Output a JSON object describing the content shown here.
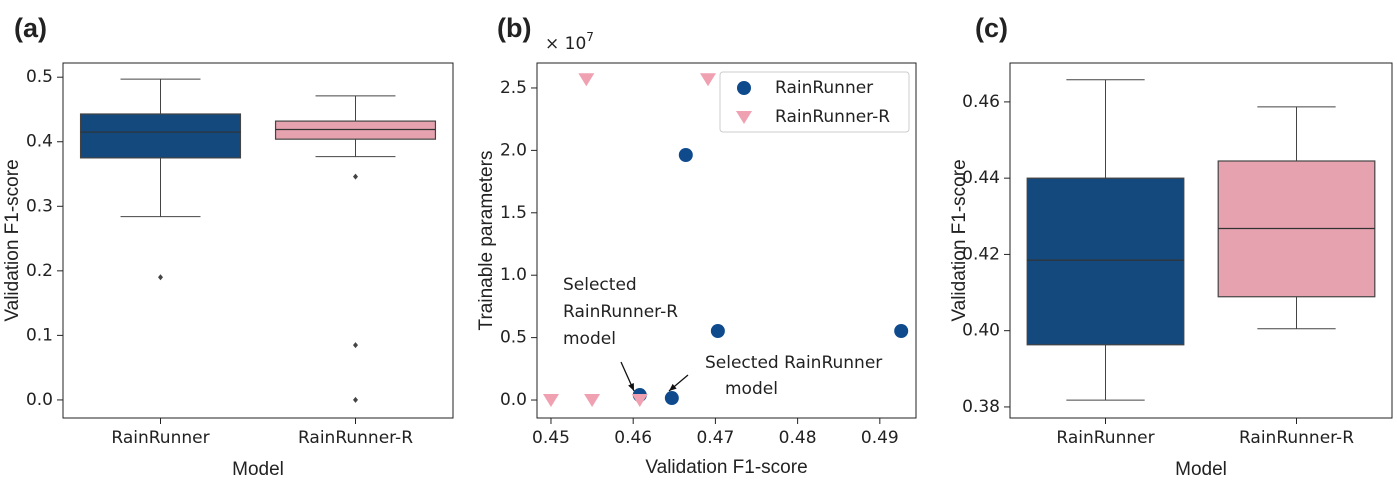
{
  "chart_data": [
    {
      "type": "box",
      "panel_label": "(a)",
      "xlabel": "Model",
      "ylabel": "Validation F1-score",
      "categories": [
        "RainRunner",
        "RainRunner-R"
      ],
      "colors": [
        "#13497c",
        "#e6a3af"
      ],
      "boxes": [
        {
          "whislo": 0.284,
          "q1": 0.375,
          "med": 0.415,
          "q3": 0.443,
          "whishi": 0.497,
          "fliers": [
            0.19
          ]
        },
        {
          "whislo": 0.377,
          "q1": 0.404,
          "med": 0.419,
          "q3": 0.432,
          "whishi": 0.471,
          "fliers": [
            0.346,
            0.085,
            0.0
          ]
        }
      ],
      "ylim": [
        -0.028,
        0.522
      ],
      "yticks": [
        {
          "value": 0,
          "label": "0.0"
        },
        0.1,
        0.2,
        0.3,
        0.4,
        0.5
      ]
    },
    {
      "type": "scatter",
      "panel_label": "(b)",
      "xlabel": "Validation F1-score",
      "ylabel": "Trainable parameters",
      "offset_label": "× 10",
      "offset_exponent": "7",
      "legend": "upper right",
      "series": [
        {
          "name": "RainRunner",
          "color": "#0e4a8c",
          "marker": "circle",
          "x": [
            0.4664,
            0.4608,
            0.4647,
            0.4703,
            0.4926
          ],
          "values": [
            1.963,
            0.04,
            0.016,
            0.553,
            0.553
          ]
        },
        {
          "name": "RainRunner-R",
          "color": "#f0a1b1",
          "marker": "triangle-down",
          "x": [
            0.4543,
            0.4691,
            0.45,
            0.455,
            0.4608
          ],
          "values": [
            2.57,
            2.57,
            0,
            0,
            0
          ]
        }
      ],
      "annotations": [
        [
          "Selected",
          "RainRunner-R",
          "model"
        ],
        [
          "Selected RainRunner",
          "model"
        ]
      ],
      "xlim": [
        0.4483,
        0.4944
      ],
      "ylim": [
        -0.144,
        2.7
      ],
      "xticks": [
        0.45,
        0.46,
        0.47,
        0.48,
        0.49
      ],
      "yticks": [
        {
          "value": 0,
          "label": "0.0"
        },
        0.5,
        {
          "value": 1,
          "label": "1.0"
        },
        1.5,
        {
          "value": 2,
          "label": "2.0"
        },
        2.5
      ]
    },
    {
      "type": "box",
      "panel_label": "(c)",
      "xlabel": "Model",
      "ylabel": "Validation F1-score",
      "categories": [
        "RainRunner",
        "RainRunner-R"
      ],
      "colors": [
        "#13497c",
        "#e6a3af"
      ],
      "boxes": [
        {
          "whislo": 0.3818,
          "q1": 0.3963,
          "med": 0.4185,
          "q3": 0.44,
          "whishi": 0.4658,
          "fliers": []
        },
        {
          "whislo": 0.4005,
          "q1": 0.4089,
          "med": 0.4268,
          "q3": 0.4445,
          "whishi": 0.4587,
          "fliers": []
        }
      ],
      "ylim": [
        0.3771,
        0.4702
      ],
      "yticks": [
        0.38,
        {
          "value": 0.4,
          "label": "0.40"
        },
        0.42,
        0.44,
        0.46
      ]
    }
  ]
}
